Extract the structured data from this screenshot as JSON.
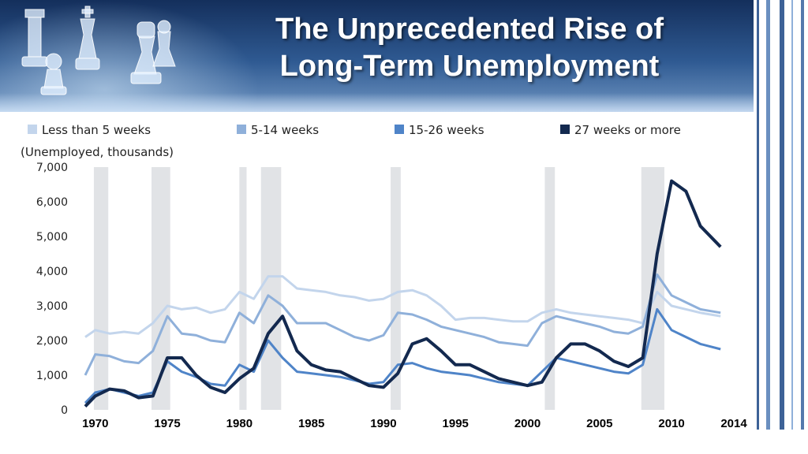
{
  "slide": {
    "title_line1": "The Unprecedented Rise of",
    "title_line2": "Long-Term Unemployment"
  },
  "icons": {
    "banner_art": "chess-pieces-icon"
  },
  "chart_data": {
    "type": "line",
    "ylabel": "(Unemployed, thousands)",
    "ylim": [
      0,
      7000
    ],
    "yticks": [
      0,
      1000,
      2000,
      3000,
      4000,
      5000,
      6000,
      7000
    ],
    "ytick_labels": [
      "0",
      "1,000",
      "2,000",
      "3,000",
      "4,000",
      "5,000",
      "6,000",
      "7,000"
    ],
    "xlim": [
      1969.3,
      2013.5
    ],
    "xticks": [
      1970,
      1975,
      1980,
      1985,
      1990,
      1995,
      2000,
      2005,
      2010,
      2014
    ],
    "xtick_labels": [
      "1970",
      "1975",
      "1980",
      "1985",
      "1990",
      "1995",
      "2000",
      "2005",
      "2010",
      "2014"
    ],
    "legend_position": "top",
    "recessions": [
      [
        1969.9,
        1970.9
      ],
      [
        1973.9,
        1975.2
      ],
      [
        1980.0,
        1980.5
      ],
      [
        1981.5,
        1982.9
      ],
      [
        1990.5,
        1991.2
      ],
      [
        2001.2,
        2001.9
      ],
      [
        2007.9,
        2009.5
      ]
    ],
    "series": [
      {
        "name": "Less than 5 weeks",
        "color": "#c3d5ec",
        "x": [
          1969.3,
          1970,
          1971,
          1972,
          1973,
          1974,
          1975,
          1976,
          1977,
          1978,
          1979,
          1980,
          1981,
          1982,
          1983,
          1984,
          1985,
          1986,
          1987,
          1988,
          1989,
          1990,
          1991,
          1992,
          1993,
          1994,
          1995,
          1996,
          1997,
          1998,
          1999,
          2000,
          2001,
          2002,
          2003,
          2004,
          2005,
          2006,
          2007,
          2008,
          2009,
          2010,
          2011,
          2012,
          2013.4
        ],
        "y": [
          2100,
          2300,
          2200,
          2250,
          2200,
          2500,
          3000,
          2900,
          2950,
          2800,
          2900,
          3400,
          3200,
          3850,
          3850,
          3500,
          3450,
          3400,
          3300,
          3250,
          3150,
          3200,
          3400,
          3450,
          3300,
          3000,
          2600,
          2650,
          2650,
          2600,
          2550,
          2550,
          2800,
          2900,
          2800,
          2750,
          2700,
          2650,
          2600,
          2500,
          3400,
          3000,
          2900,
          2800,
          2700
        ]
      },
      {
        "name": "5-14 weeks",
        "color": "#8fb0da",
        "x": [
          1969.3,
          1970,
          1971,
          1972,
          1973,
          1974,
          1975,
          1976,
          1977,
          1978,
          1979,
          1980,
          1981,
          1982,
          1983,
          1984,
          1985,
          1986,
          1987,
          1988,
          1989,
          1990,
          1991,
          1992,
          1993,
          1994,
          1995,
          1996,
          1997,
          1998,
          1999,
          2000,
          2001,
          2002,
          2003,
          2004,
          2005,
          2006,
          2007,
          2008,
          2009,
          2010,
          2011,
          2012,
          2013.4
        ],
        "y": [
          1000,
          1600,
          1550,
          1400,
          1350,
          1700,
          2700,
          2200,
          2150,
          2000,
          1950,
          2800,
          2500,
          3300,
          3000,
          2500,
          2500,
          2500,
          2300,
          2100,
          2000,
          2150,
          2800,
          2750,
          2600,
          2400,
          2300,
          2200,
          2100,
          1950,
          1900,
          1850,
          2500,
          2700,
          2600,
          2500,
          2400,
          2250,
          2200,
          2400,
          3900,
          3300,
          3100,
          2900,
          2800
        ]
      },
      {
        "name": "15-26 weeks",
        "color": "#4f84c8",
        "x": [
          1969.3,
          1970,
          1971,
          1972,
          1973,
          1974,
          1975,
          1976,
          1977,
          1978,
          1979,
          1980,
          1981,
          1982,
          1983,
          1984,
          1985,
          1986,
          1987,
          1988,
          1989,
          1990,
          1991,
          1992,
          1993,
          1994,
          1995,
          1996,
          1997,
          1998,
          1999,
          2000,
          2001,
          2002,
          2003,
          2004,
          2005,
          2006,
          2007,
          2008,
          2009,
          2010,
          2011,
          2012,
          2013.4
        ],
        "y": [
          200,
          500,
          600,
          500,
          400,
          500,
          1400,
          1100,
          950,
          750,
          700,
          1300,
          1100,
          2000,
          1500,
          1100,
          1050,
          1000,
          950,
          850,
          750,
          800,
          1300,
          1350,
          1200,
          1100,
          1050,
          1000,
          900,
          800,
          750,
          700,
          1100,
          1500,
          1400,
          1300,
          1200,
          1100,
          1050,
          1300,
          2900,
          2300,
          2100,
          1900,
          1750
        ]
      },
      {
        "name": "27 weeks or more",
        "color": "#13294f",
        "x": [
          1969.3,
          1970,
          1971,
          1972,
          1973,
          1974,
          1975,
          1976,
          1977,
          1978,
          1979,
          1980,
          1981,
          1982,
          1983,
          1984,
          1985,
          1986,
          1987,
          1988,
          1989,
          1990,
          1991,
          1992,
          1993,
          1994,
          1995,
          1996,
          1997,
          1998,
          1999,
          2000,
          2001,
          2002,
          2003,
          2004,
          2005,
          2006,
          2007,
          2008,
          2009,
          2010,
          2011,
          2012,
          2013.4
        ],
        "y": [
          100,
          400,
          600,
          550,
          350,
          400,
          1500,
          1500,
          1000,
          650,
          500,
          900,
          1200,
          2200,
          2700,
          1700,
          1300,
          1150,
          1100,
          900,
          700,
          650,
          1050,
          1900,
          2050,
          1700,
          1300,
          1300,
          1100,
          900,
          800,
          700,
          800,
          1500,
          1900,
          1900,
          1700,
          1400,
          1250,
          1500,
          4500,
          6600,
          6300,
          5300,
          4700
        ]
      }
    ]
  }
}
